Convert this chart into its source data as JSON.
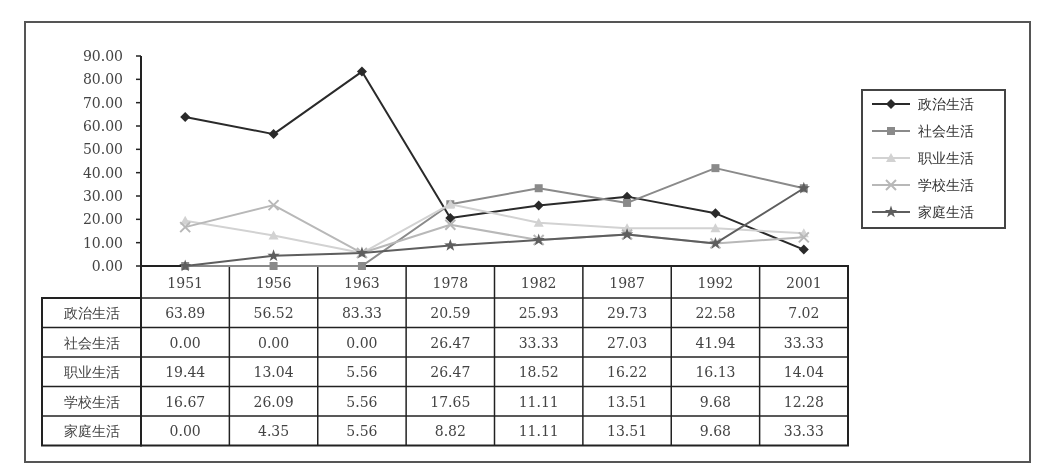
{
  "chart_data": {
    "type": "line",
    "categories": [
      "1951",
      "1956",
      "1963",
      "1978",
      "1982",
      "1987",
      "1992",
      "2001"
    ],
    "ylim": [
      0,
      90
    ],
    "yticks": [
      {
        "value": 0,
        "label": "0.00"
      },
      {
        "value": 10,
        "label": "10.00"
      },
      {
        "value": 20,
        "label": "20.00"
      },
      {
        "value": 30,
        "label": "30.00"
      },
      {
        "value": 40,
        "label": "40.00"
      },
      {
        "value": 50,
        "label": "50.00"
      },
      {
        "value": 60,
        "label": "60.00"
      },
      {
        "value": 70,
        "label": "70.00"
      },
      {
        "value": 80,
        "label": "80.00"
      },
      {
        "value": 90,
        "label": "90.00"
      }
    ],
    "legend": "right",
    "grid": false,
    "series": [
      {
        "name": "政治生活",
        "color": "#2a2a2a",
        "marker": "diamond",
        "values": [
          63.89,
          56.52,
          83.33,
          20.59,
          25.93,
          29.73,
          22.58,
          7.02
        ],
        "value_labels": [
          "63.89",
          "56.52",
          "83.33",
          "20.59",
          "25.93",
          "29.73",
          "22.58",
          "7.02"
        ]
      },
      {
        "name": "社会生活",
        "color": "#8a8a8a",
        "marker": "square",
        "values": [
          0,
          0,
          0,
          26.47,
          33.33,
          27.03,
          41.94,
          33.33
        ],
        "value_labels": [
          "0.00",
          "0.00",
          "0.00",
          "26.47",
          "33.33",
          "27.03",
          "41.94",
          "33.33"
        ]
      },
      {
        "name": "职业生活",
        "color": "#d2d2d2",
        "marker": "triangle",
        "values": [
          19.44,
          13.04,
          5.56,
          26.47,
          18.52,
          16.22,
          16.13,
          14.04
        ],
        "value_labels": [
          "19.44",
          "13.04",
          "5.56",
          "26.47",
          "18.52",
          "16.22",
          "16.13",
          "14.04"
        ]
      },
      {
        "name": "学校生活",
        "color": "#b8b8b8",
        "marker": "cross",
        "values": [
          16.67,
          26.09,
          5.56,
          17.65,
          11.11,
          13.51,
          9.68,
          12.28
        ],
        "value_labels": [
          "16.67",
          "26.09",
          "5.56",
          "17.65",
          "11.11",
          "13.51",
          "9.68",
          "12.28"
        ]
      },
      {
        "name": "家庭生活",
        "color": "#5e5e5e",
        "marker": "star",
        "values": [
          0,
          4.35,
          5.56,
          8.82,
          11.11,
          13.51,
          9.68,
          33.33
        ],
        "value_labels": [
          "0.00",
          "4.35",
          "5.56",
          "8.82",
          "11.11",
          "13.51",
          "9.68",
          "33.33"
        ]
      }
    ]
  }
}
